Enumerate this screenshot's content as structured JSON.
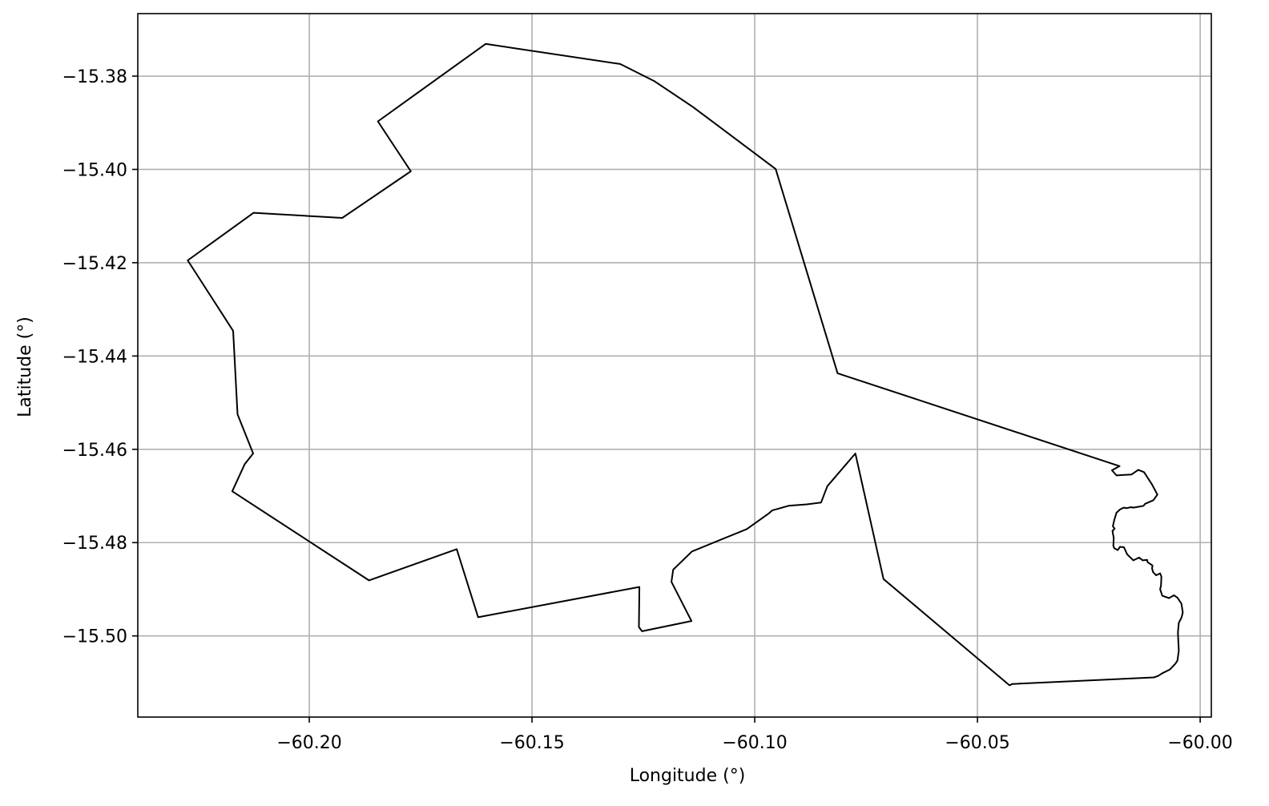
{
  "chart_data": {
    "type": "line",
    "title": "",
    "xlabel": "Longitude (°)",
    "ylabel": "Latitude (°)",
    "xlim": [
      -60.2385,
      -59.9975
    ],
    "ylim": [
      -15.5174,
      -15.3666
    ],
    "x_ticks": [
      -60.2,
      -60.15,
      -60.1,
      -60.05,
      -60.0
    ],
    "x_tick_labels": [
      "−60.20",
      "−60.15",
      "−60.10",
      "−60.05",
      "−60.00"
    ],
    "y_ticks": [
      -15.38,
      -15.4,
      -15.42,
      -15.44,
      -15.46,
      -15.48,
      -15.5
    ],
    "y_tick_labels": [
      "−15.38",
      "−15.40",
      "−15.42",
      "−15.44",
      "−15.46",
      "−15.48",
      "−15.50"
    ],
    "grid": true,
    "line_color": "#000000",
    "grid_color": "#b0b0b0",
    "series": [
      {
        "points": [
          [
            -60.1604,
            -15.3731
          ],
          [
            -60.1302,
            -15.3774
          ],
          [
            -60.1225,
            -15.3811
          ],
          [
            -60.1139,
            -15.3866
          ],
          [
            -60.0953,
            -15.3999
          ],
          [
            -60.0814,
            -15.4437
          ],
          [
            -60.0181,
            -15.4636
          ],
          [
            -60.0198,
            -15.4645
          ],
          [
            -60.0188,
            -15.4656
          ],
          [
            -60.0154,
            -15.4654
          ],
          [
            -60.0139,
            -15.4644
          ],
          [
            -60.0126,
            -15.4649
          ],
          [
            -60.0109,
            -15.4674
          ],
          [
            -60.0096,
            -15.4697
          ],
          [
            -60.0105,
            -15.4709
          ],
          [
            -60.0124,
            -15.4717
          ],
          [
            -60.0127,
            -15.4721
          ],
          [
            -60.0137,
            -15.4723
          ],
          [
            -60.015,
            -15.4725
          ],
          [
            -60.0155,
            -15.4724
          ],
          [
            -60.0165,
            -15.4726
          ],
          [
            -60.0172,
            -15.4725
          ],
          [
            -60.018,
            -15.4729
          ],
          [
            -60.0188,
            -15.4736
          ],
          [
            -60.0193,
            -15.4752
          ],
          [
            -60.0196,
            -15.4765
          ],
          [
            -60.0192,
            -15.477
          ],
          [
            -60.0197,
            -15.4775
          ],
          [
            -60.0194,
            -15.479
          ],
          [
            -60.0195,
            -15.4807
          ],
          [
            -60.0193,
            -15.4812
          ],
          [
            -60.0185,
            -15.4816
          ],
          [
            -60.018,
            -15.4809
          ],
          [
            -60.0171,
            -15.481
          ],
          [
            -60.0164,
            -15.4825
          ],
          [
            -60.015,
            -15.4838
          ],
          [
            -60.0137,
            -15.4832
          ],
          [
            -60.0129,
            -15.4838
          ],
          [
            -60.0119,
            -15.4837
          ],
          [
            -60.0118,
            -15.4842
          ],
          [
            -60.0107,
            -15.4849
          ],
          [
            -60.0108,
            -15.4855
          ],
          [
            -60.0106,
            -15.4863
          ],
          [
            -60.0099,
            -15.487
          ],
          [
            -60.009,
            -15.4866
          ],
          [
            -60.0087,
            -15.4873
          ],
          [
            -60.0088,
            -15.4892
          ],
          [
            -60.009,
            -15.49
          ],
          [
            -60.0085,
            -15.4914
          ],
          [
            -60.007,
            -15.4919
          ],
          [
            -60.0059,
            -15.4913
          ],
          [
            -60.0051,
            -15.4918
          ],
          [
            -60.0042,
            -15.4931
          ],
          [
            -60.0039,
            -15.495
          ],
          [
            -60.0042,
            -15.4961
          ],
          [
            -60.0048,
            -15.4972
          ],
          [
            -60.005,
            -15.4993
          ],
          [
            -60.0048,
            -15.5032
          ],
          [
            -60.0051,
            -15.5053
          ],
          [
            -60.0056,
            -15.506
          ],
          [
            -60.0068,
            -15.5072
          ],
          [
            -60.0085,
            -15.508
          ],
          [
            -60.0095,
            -15.5086
          ],
          [
            -60.0104,
            -15.5089
          ],
          [
            -60.0422,
            -15.5103
          ],
          [
            -60.0428,
            -15.5106
          ],
          [
            -60.0711,
            -15.4878
          ],
          [
            -60.0774,
            -15.4609
          ],
          [
            -60.0837,
            -15.4679
          ],
          [
            -60.0851,
            -15.4714
          ],
          [
            -60.0883,
            -15.4718
          ],
          [
            -60.0924,
            -15.4721
          ],
          [
            -60.0961,
            -15.4731
          ],
          [
            -60.0969,
            -15.4738
          ],
          [
            -60.1018,
            -15.4771
          ],
          [
            -60.1141,
            -15.4819
          ],
          [
            -60.1183,
            -15.4858
          ],
          [
            -60.1187,
            -15.4884
          ],
          [
            -60.1142,
            -15.4968
          ],
          [
            -60.1253,
            -15.499
          ],
          [
            -60.126,
            -15.4981
          ],
          [
            -60.1259,
            -15.4895
          ],
          [
            -60.1621,
            -15.496
          ],
          [
            -60.1669,
            -15.4814
          ],
          [
            -60.1866,
            -15.4881
          ],
          [
            -60.2173,
            -15.469
          ],
          [
            -60.2145,
            -15.4632
          ],
          [
            -60.2126,
            -15.4609
          ],
          [
            -60.2161,
            -15.4525
          ],
          [
            -60.2171,
            -15.4346
          ],
          [
            -60.2273,
            -15.4195
          ],
          [
            -60.2125,
            -15.4093
          ],
          [
            -60.1926,
            -15.4104
          ],
          [
            -60.1772,
            -15.4004
          ],
          [
            -60.1846,
            -15.3897
          ],
          [
            -60.1604,
            -15.3731
          ]
        ]
      }
    ]
  }
}
